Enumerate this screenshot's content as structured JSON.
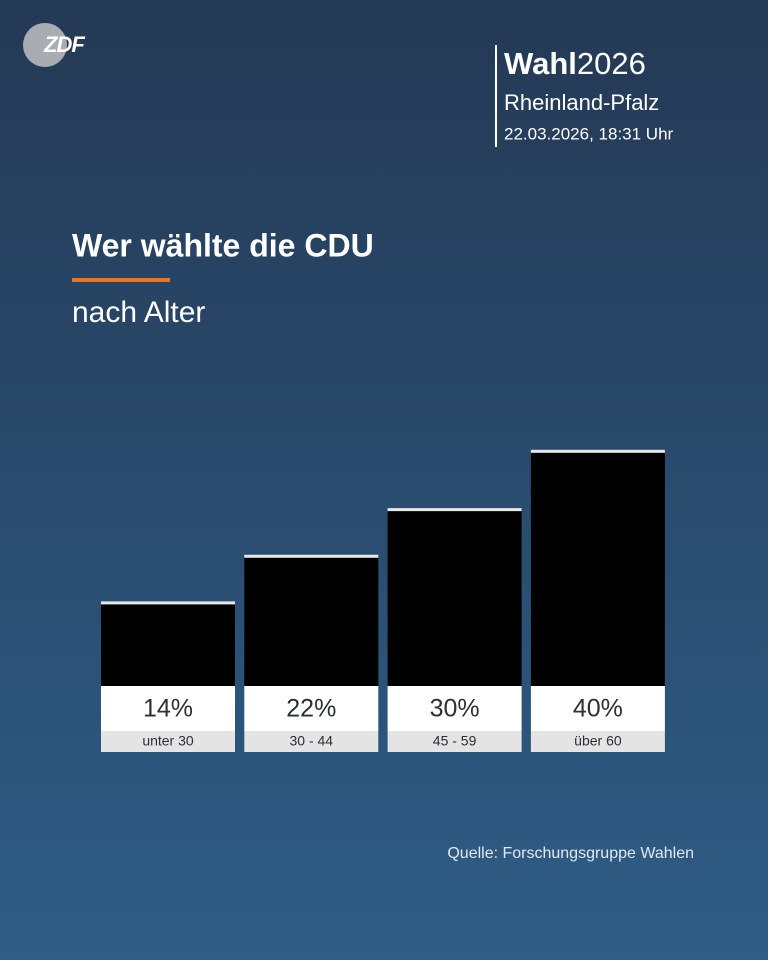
{
  "logo": "ZDF",
  "header": {
    "brand": "Wahl",
    "year": "2026",
    "region": "Rheinland-Pfalz",
    "timestamp": "22.03.2026, 18:31 Uhr"
  },
  "chart_data": {
    "type": "bar",
    "title": "Wer wählte die CDU",
    "subtitle": "nach Alter",
    "categories": [
      "unter 30",
      "30 - 44",
      "45 - 59",
      "über 60"
    ],
    "values": [
      14,
      22,
      30,
      40
    ],
    "value_labels": [
      "14%",
      "22%",
      "30%",
      "40%"
    ],
    "color": "#000000",
    "source": "Quelle: Forschungsgruppe Wahlen"
  }
}
